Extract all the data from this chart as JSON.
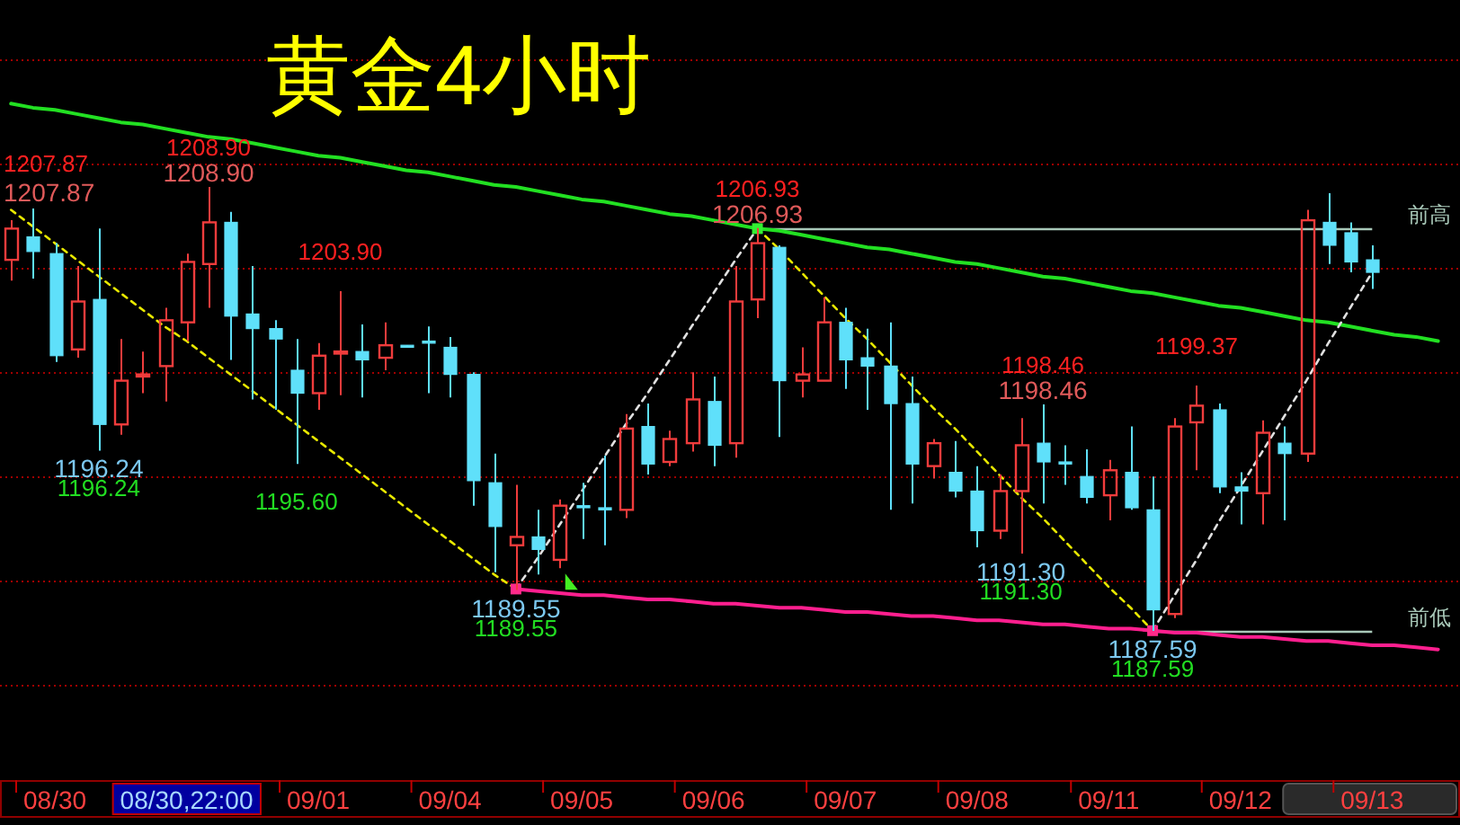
{
  "chart_data": {
    "type": "candlestick",
    "title": "黄金4小时",
    "categories": [
      null,
      null,
      "08/30",
      null,
      null,
      null,
      null,
      null,
      "08/30,22:00",
      null,
      null,
      null,
      null,
      null,
      "09/01",
      null,
      null,
      null,
      null,
      null,
      "09/04",
      null,
      null,
      null,
      null,
      null,
      "09/05",
      null,
      null,
      null,
      null,
      null,
      "09/06",
      null,
      null,
      null,
      null,
      null,
      "09/07",
      null,
      null,
      null,
      null,
      null,
      "09/08",
      null,
      null,
      null,
      null,
      null,
      "09/11",
      null,
      null,
      null,
      null,
      null,
      "09/12",
      null,
      null,
      null,
      null,
      null,
      "09/13",
      null,
      null,
      null
    ],
    "ohlc": [
      [
        1205.4,
        1207.3,
        1204.4,
        1206.9
      ],
      [
        1206.5,
        1207.87,
        1204.5,
        1205.8
      ],
      [
        1205.7,
        1206.2,
        1200.5,
        1200.8
      ],
      [
        1201.1,
        1205.1,
        1200.7,
        1203.4
      ],
      [
        1203.5,
        1206.9,
        1196.24,
        1197.5
      ],
      [
        1197.5,
        1201.6,
        1197.0,
        1199.6
      ],
      [
        1199.8,
        1201.0,
        1199.0,
        1199.9
      ],
      [
        1200.3,
        1203.1,
        1198.6,
        1202.5
      ],
      [
        1202.4,
        1205.7,
        1201.5,
        1205.3
      ],
      [
        1205.2,
        1208.9,
        1203.1,
        1207.2
      ],
      [
        1207.2,
        1207.7,
        1200.6,
        1202.7
      ],
      [
        1202.8,
        1205.1,
        1198.7,
        1202.1
      ],
      [
        1202.1,
        1202.5,
        1198.2,
        1201.6
      ],
      [
        1200.1,
        1201.6,
        1195.6,
        1199.0
      ],
      [
        1199.0,
        1201.4,
        1198.2,
        1200.8
      ],
      [
        1200.9,
        1203.9,
        1198.9,
        1201.0
      ],
      [
        1201.0,
        1202.3,
        1198.8,
        1200.6
      ],
      [
        1200.7,
        1202.4,
        1200.1,
        1201.3
      ],
      [
        1201.3,
        1201.3,
        1201.2,
        1201.2
      ],
      [
        1201.5,
        1202.2,
        1199.0,
        1201.4
      ],
      [
        1201.2,
        1201.7,
        1198.8,
        1199.9
      ],
      [
        1199.9,
        1200.0,
        1193.6,
        1194.8
      ],
      [
        1194.7,
        1196.1,
        1190.4,
        1192.6
      ],
      [
        1191.7,
        1194.6,
        1189.55,
        1192.1
      ],
      [
        1192.1,
        1193.4,
        1190.3,
        1191.5
      ],
      [
        1191.0,
        1193.9,
        1190.6,
        1193.6
      ],
      [
        1193.6,
        1194.7,
        1192.0,
        1193.5
      ],
      [
        1193.5,
        1196.0,
        1191.7,
        1193.4
      ],
      [
        1193.4,
        1198.0,
        1193.0,
        1197.3
      ],
      [
        1197.4,
        1198.5,
        1195.1,
        1195.6
      ],
      [
        1195.7,
        1197.2,
        1195.5,
        1196.8
      ],
      [
        1196.6,
        1200.0,
        1196.2,
        1198.7
      ],
      [
        1198.6,
        1199.8,
        1195.5,
        1196.5
      ],
      [
        1196.6,
        1205.1,
        1195.9,
        1203.4
      ],
      [
        1203.5,
        1206.93,
        1202.6,
        1206.2
      ],
      [
        1206.0,
        1206.1,
        1196.9,
        1199.6
      ],
      [
        1199.6,
        1201.2,
        1198.8,
        1199.9
      ],
      [
        1199.6,
        1203.6,
        1199.6,
        1202.4
      ],
      [
        1202.4,
        1203.1,
        1199.2,
        1200.6
      ],
      [
        1200.7,
        1202.1,
        1198.2,
        1200.3
      ],
      [
        1200.3,
        1202.4,
        1193.4,
        1198.5
      ],
      [
        1198.5,
        1199.8,
        1193.7,
        1195.6
      ],
      [
        1195.5,
        1196.8,
        1194.9,
        1196.6
      ],
      [
        1195.2,
        1196.7,
        1194.0,
        1194.3
      ],
      [
        1194.3,
        1195.5,
        1191.6,
        1192.4
      ],
      [
        1192.4,
        1195.1,
        1192.0,
        1194.3
      ],
      [
        1194.3,
        1197.8,
        1191.3,
        1196.5
      ],
      [
        1196.6,
        1198.46,
        1193.7,
        1195.7
      ],
      [
        1195.7,
        1196.5,
        1194.6,
        1195.6
      ],
      [
        1195.0,
        1196.3,
        1193.7,
        1194.0
      ],
      [
        1194.1,
        1195.8,
        1192.9,
        1195.3
      ],
      [
        1195.2,
        1197.4,
        1193.4,
        1193.5
      ],
      [
        1193.4,
        1195.0,
        1187.59,
        1188.6
      ],
      [
        1188.4,
        1197.8,
        1188.2,
        1197.4
      ],
      [
        1197.6,
        1199.37,
        1195.3,
        1198.4
      ],
      [
        1198.2,
        1198.5,
        1194.2,
        1194.5
      ],
      [
        1194.5,
        1195.2,
        1192.7,
        1194.3
      ],
      [
        1194.2,
        1197.7,
        1192.7,
        1197.1
      ],
      [
        1196.6,
        1197.4,
        1192.9,
        1196.1
      ],
      [
        1196.1,
        1207.8,
        1195.7,
        1207.3
      ],
      [
        1207.2,
        1208.6,
        1205.2,
        1206.1
      ],
      [
        1206.7,
        1207.2,
        1204.8,
        1205.3
      ],
      [
        1205.4,
        1206.1,
        1204.0,
        1204.8
      ],
      null,
      null,
      null
    ],
    "colors": [
      "#f03c3c",
      "#5fe0fa",
      "#5fe0fa",
      "#f03c3c",
      "#5fe0fa",
      "#f03c3c",
      "#f03c3c",
      "#f03c3c",
      "#f03c3c",
      "#f03c3c",
      "#5fe0fa",
      "#5fe0fa",
      "#5fe0fa",
      "#5fe0fa",
      "#f03c3c",
      "#f03c3c",
      "#5fe0fa",
      "#f03c3c",
      "#5fe0fa",
      "#5fe0fa",
      "#5fe0fa",
      "#5fe0fa",
      "#5fe0fa",
      "#f03c3c",
      "#5fe0fa",
      "#f03c3c",
      "#5fe0fa",
      "#5fe0fa",
      "#f03c3c",
      "#5fe0fa",
      "#f03c3c",
      "#f03c3c",
      "#5fe0fa",
      "#f03c3c",
      "#f03c3c",
      "#5fe0fa",
      "#f03c3c",
      "#f03c3c",
      "#5fe0fa",
      "#5fe0fa",
      "#5fe0fa",
      "#5fe0fa",
      "#f03c3c",
      "#5fe0fa",
      "#5fe0fa",
      "#f03c3c",
      "#f03c3c",
      "#5fe0fa",
      "#5fe0fa",
      "#5fe0fa",
      "#f03c3c",
      "#5fe0fa",
      "#5fe0fa",
      "#f03c3c",
      "#f03c3c",
      "#5fe0fa",
      "#5fe0fa",
      "#f03c3c",
      "#5fe0fa",
      "#f03c3c",
      "#5fe0fa",
      "#5fe0fa",
      "#5fe0fa",
      null,
      null,
      null
    ],
    "series": [
      {
        "type": "line",
        "color": "#22e022",
        "values": [
          1212.9,
          1212.7,
          1212.6,
          1212.4,
          1212.2,
          1212.0,
          1211.9,
          1211.7,
          1211.5,
          1211.3,
          1211.2,
          1211.0,
          1210.8,
          1210.6,
          1210.4,
          1210.3,
          1210.1,
          1209.9,
          1209.7,
          1209.6,
          1209.4,
          1209.2,
          1209.0,
          1208.9,
          1208.7,
          1208.5,
          1208.3,
          1208.2,
          1208.0,
          1207.8,
          1207.6,
          1207.5,
          1207.3,
          1207.1,
          1206.9,
          1206.8,
          1206.6,
          1206.4,
          1206.2,
          1206.0,
          1205.9,
          1205.7,
          1205.5,
          1205.3,
          1205.2,
          1205.0,
          1204.8,
          1204.6,
          1204.5,
          1204.3,
          1204.1,
          1203.9,
          1203.8,
          1203.6,
          1203.4,
          1203.2,
          1203.1,
          1202.9,
          1202.7,
          1202.5,
          1202.4,
          1202.2,
          1202.0,
          1201.8,
          1201.7,
          1201.5
        ]
      },
      {
        "type": "line",
        "color": "#ff1f8f",
        "values": [
          null,
          null,
          null,
          null,
          null,
          null,
          null,
          null,
          null,
          null,
          null,
          null,
          null,
          null,
          null,
          null,
          null,
          null,
          null,
          null,
          null,
          null,
          null,
          1189.6,
          1189.5,
          1189.4,
          1189.3,
          1189.3,
          1189.2,
          1189.1,
          1189.1,
          1189.0,
          1188.9,
          1188.9,
          1188.8,
          1188.7,
          1188.7,
          1188.6,
          1188.5,
          1188.5,
          1188.4,
          1188.3,
          1188.3,
          1188.2,
          1188.1,
          1188.1,
          1188.0,
          1187.9,
          1187.9,
          1187.8,
          1187.7,
          1187.7,
          1187.6,
          1187.5,
          1187.5,
          1187.4,
          1187.3,
          1187.3,
          1187.2,
          1187.1,
          1187.1,
          1187.0,
          1186.9,
          1186.9,
          1186.8,
          1186.7
        ]
      },
      {
        "type": "line",
        "color": "#e8e800",
        "line_style": "dashed",
        "values": [
          1207.8,
          1207.0,
          1206.2,
          1205.4,
          1204.6,
          1203.8,
          1203.0,
          1202.2,
          1201.5,
          1200.7,
          1199.9,
          1199.1,
          1198.3,
          1197.5,
          1196.7,
          1195.9,
          1195.1,
          1194.3,
          1193.5,
          1192.7,
          1191.9,
          1191.1,
          1190.3,
          1189.6,
          null,
          null,
          null,
          null,
          null,
          null,
          null,
          null,
          null,
          null,
          1206.9,
          1205.9,
          1204.8,
          1203.7,
          1202.6,
          1201.6,
          1200.5,
          1199.4,
          1198.3,
          1197.3,
          1196.2,
          1195.1,
          1194.0,
          1193.0,
          1191.9,
          1190.8,
          1189.7,
          1188.7,
          1187.6,
          null,
          null,
          null,
          null,
          null,
          null,
          null,
          null,
          null,
          null,
          null,
          null,
          null
        ]
      },
      {
        "type": "line",
        "color": "#e0e0e0",
        "line_style": "dashed",
        "values": [
          null,
          null,
          null,
          null,
          null,
          null,
          null,
          null,
          null,
          null,
          null,
          null,
          null,
          null,
          null,
          null,
          null,
          null,
          null,
          null,
          null,
          null,
          null,
          1189.6,
          1191.1,
          1192.7,
          1194.3,
          1195.9,
          1197.5,
          1199.0,
          1200.6,
          1202.2,
          1203.8,
          1205.4,
          1206.9,
          null,
          null,
          null,
          null,
          null,
          null,
          null,
          null,
          null,
          null,
          null,
          null,
          null,
          null,
          null,
          null,
          null,
          1187.6,
          1189.3,
          1191.0,
          1192.8,
          1194.5,
          1196.2,
          1197.9,
          1199.6,
          1201.4,
          1203.1,
          1204.8,
          null,
          null,
          null
        ]
      },
      {
        "type": "scatter",
        "marker": "square",
        "values": [
          null,
          null,
          null,
          null,
          null,
          null,
          null,
          null,
          null,
          null,
          null,
          null,
          null,
          null,
          null,
          null,
          null,
          null,
          null,
          null,
          null,
          null,
          null,
          1189.6,
          null,
          null,
          null,
          null,
          null,
          null,
          null,
          null,
          null,
          null,
          1206.9,
          null,
          null,
          null,
          null,
          null,
          null,
          null,
          null,
          null,
          null,
          null,
          null,
          null,
          null,
          null,
          null,
          null,
          1187.6,
          null,
          null,
          null,
          null,
          null,
          null,
          null,
          null,
          null,
          null,
          null,
          null,
          null
        ],
        "colors": [
          null,
          null,
          null,
          null,
          null,
          null,
          null,
          null,
          null,
          null,
          null,
          null,
          null,
          null,
          null,
          null,
          null,
          null,
          null,
          null,
          null,
          null,
          null,
          "#ff2a8a",
          null,
          null,
          null,
          null,
          null,
          null,
          null,
          null,
          null,
          null,
          "#33ee33",
          null,
          null,
          null,
          null,
          null,
          null,
          null,
          null,
          null,
          null,
          null,
          null,
          null,
          null,
          null,
          null,
          null,
          "#ff2a8a",
          null,
          null,
          null,
          null,
          null,
          null,
          null,
          null,
          null,
          null,
          null,
          null,
          null
        ]
      }
    ],
    "ref_lines": [
      {
        "axis": "y",
        "value": 1206.93,
        "label": "前高",
        "color": "#a8c8b8"
      },
      {
        "axis": "y",
        "value": 1187.59,
        "label": "前低",
        "color": "#a8c8b8"
      }
    ],
    "annotations": [
      "1207.87",
      "1207.87",
      {
        "text": "1208.90",
        "y": 1208.9
      },
      {
        "text": "1208.90",
        "y": 1208.9
      },
      {
        "text": "1203.90",
        "y": 1203.9
      },
      {
        "text": "1196.24",
        "y": 1196.24
      },
      {
        "text": "1196.24",
        "y": 1196.24
      },
      {
        "text": "1195.60",
        "y": 1195.6
      },
      {
        "text": "1189.55",
        "y": 1189.55
      },
      {
        "text": "1189.55",
        "y": 1189.55
      },
      {
        "text": "1206.93",
        "y": 1206.93
      },
      {
        "text": "1206.93",
        "y": 1206.93
      },
      {
        "text": "1198.46",
        "y": 1198.46
      },
      {
        "text": "1198.46",
        "y": 1198.46
      },
      {
        "text": "1191.30",
        "y": 1191.3
      },
      {
        "text": "1191.30",
        "y": 1191.3
      },
      {
        "text": "1199.37",
        "y": 1199.37
      },
      {
        "text": "1187.59",
        "y": 1187.59
      },
      {
        "text": "1187.59",
        "y": 1187.59
      }
    ],
    "yticks": [
      {
        "value": 1185,
        "label": null
      },
      {
        "value": 1190,
        "label": null
      },
      {
        "value": 1195,
        "label": null
      },
      {
        "value": 1200,
        "label": null
      },
      {
        "value": 1205,
        "label": null
      },
      {
        "value": 1210,
        "label": null
      },
      {
        "value": 1215,
        "label": null
      }
    ],
    "grid": "y",
    "tick_labels": "x"
  }
}
